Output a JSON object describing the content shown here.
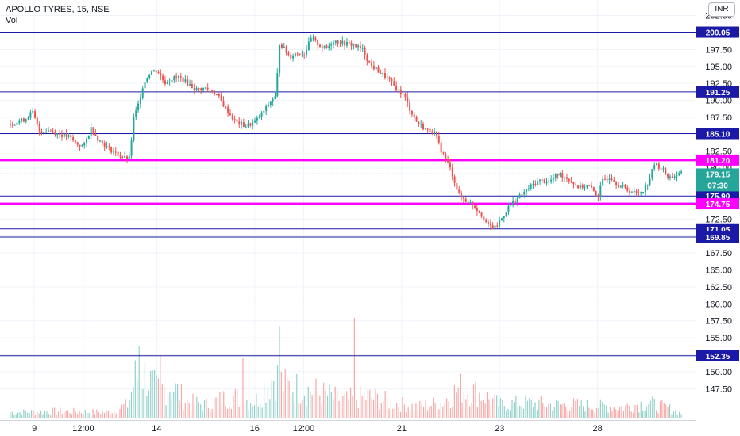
{
  "header": {
    "symbol": "APOLLO TYRES, 15, NSE",
    "indicator": "Vol",
    "currency": "INR"
  },
  "colors": {
    "up": "#26a69a",
    "down": "#ef5350",
    "hline_blue": "#1a1aa6",
    "hline_magenta": "#ff00ff",
    "last_price_badge": "#26a69a"
  },
  "chart_data": {
    "type": "candlestick",
    "y_range": [
      144.5,
      203.5
    ],
    "y_ticks": [
      "202.50",
      "200.00",
      "197.50",
      "195.00",
      "192.50",
      "190.00",
      "187.50",
      "185.00",
      "182.50",
      "180.00",
      "177.50",
      "175.00",
      "172.50",
      "170.00",
      "167.50",
      "165.00",
      "162.50",
      "160.00",
      "157.50",
      "155.00",
      "152.50",
      "150.00",
      "147.50"
    ],
    "x_labels": [
      {
        "label": "9",
        "t": 0.5
      },
      {
        "label": "12:00",
        "t": 1.5
      },
      {
        "label": "14",
        "t": 3.0
      },
      {
        "label": "16",
        "t": 5.0
      },
      {
        "label": "12:00",
        "t": 6.0
      },
      {
        "label": "21",
        "t": 8.0
      },
      {
        "label": "23",
        "t": 10.0
      },
      {
        "label": "28",
        "t": 12.0
      }
    ],
    "x_domain": [
      -0.2,
      14.0
    ],
    "price_path": [
      [
        0.0,
        186.5
      ],
      [
        0.3,
        187.2
      ],
      [
        0.45,
        188.3
      ],
      [
        0.6,
        185.4
      ],
      [
        0.8,
        185.6
      ],
      [
        1.0,
        185.0
      ],
      [
        1.2,
        184.6
      ],
      [
        1.35,
        183.6
      ],
      [
        1.5,
        183.2
      ],
      [
        1.65,
        185.9
      ],
      [
        1.8,
        184.2
      ],
      [
        1.95,
        183.2
      ],
      [
        2.15,
        182.2
      ],
      [
        2.35,
        181.4
      ],
      [
        2.45,
        181.5
      ],
      [
        2.5,
        187.0
      ],
      [
        2.6,
        189.0
      ],
      [
        2.7,
        192.0
      ],
      [
        2.85,
        194.2
      ],
      [
        3.0,
        194.4
      ],
      [
        3.15,
        192.6
      ],
      [
        3.3,
        193.2
      ],
      [
        3.45,
        193.4
      ],
      [
        3.6,
        192.6
      ],
      [
        3.8,
        191.6
      ],
      [
        4.0,
        191.8
      ],
      [
        4.2,
        191.0
      ],
      [
        4.4,
        188.8
      ],
      [
        4.6,
        186.8
      ],
      [
        4.8,
        186.2
      ],
      [
        5.0,
        186.8
      ],
      [
        5.2,
        188.6
      ],
      [
        5.35,
        190.2
      ],
      [
        5.42,
        190.5
      ],
      [
        5.5,
        198.6
      ],
      [
        5.7,
        196.4
      ],
      [
        5.85,
        197.0
      ],
      [
        6.0,
        196.8
      ],
      [
        6.15,
        199.2
      ],
      [
        6.3,
        198.2
      ],
      [
        6.45,
        197.6
      ],
      [
        6.6,
        198.8
      ],
      [
        6.8,
        198.4
      ],
      [
        7.0,
        198.2
      ],
      [
        7.2,
        197.4
      ],
      [
        7.35,
        195.2
      ],
      [
        7.5,
        194.4
      ],
      [
        7.7,
        193.2
      ],
      [
        7.9,
        191.6
      ],
      [
        8.05,
        190.6
      ],
      [
        8.15,
        188.8
      ],
      [
        8.3,
        186.8
      ],
      [
        8.5,
        185.6
      ],
      [
        8.65,
        185.4
      ],
      [
        8.8,
        182.6
      ],
      [
        8.95,
        180.5
      ],
      [
        9.05,
        178.6
      ],
      [
        9.15,
        176.2
      ],
      [
        9.3,
        175.2
      ],
      [
        9.45,
        174.6
      ],
      [
        9.6,
        173.4
      ],
      [
        9.75,
        171.6
      ],
      [
        9.9,
        171.2
      ],
      [
        10.05,
        172.8
      ],
      [
        10.2,
        174.6
      ],
      [
        10.4,
        175.8
      ],
      [
        10.6,
        177.2
      ],
      [
        10.8,
        178.2
      ],
      [
        11.0,
        178.0
      ],
      [
        11.2,
        179.2
      ],
      [
        11.4,
        178.4
      ],
      [
        11.6,
        177.2
      ],
      [
        11.8,
        177.4
      ],
      [
        12.0,
        175.9
      ],
      [
        12.1,
        178.2
      ],
      [
        12.25,
        178.8
      ],
      [
        12.4,
        177.6
      ],
      [
        12.6,
        176.8
      ],
      [
        12.8,
        176.2
      ],
      [
        12.95,
        177.0
      ],
      [
        13.05,
        178.4
      ],
      [
        13.15,
        180.6
      ],
      [
        13.3,
        180.0
      ],
      [
        13.45,
        178.6
      ],
      [
        13.6,
        179.0
      ],
      [
        13.7,
        179.15
      ]
    ],
    "volume_profile": [
      [
        0.0,
        0.05
      ],
      [
        1.0,
        0.06
      ],
      [
        2.0,
        0.05
      ],
      [
        2.4,
        0.12
      ],
      [
        2.55,
        0.38
      ],
      [
        2.75,
        0.4
      ],
      [
        3.0,
        0.25
      ],
      [
        3.3,
        0.3
      ],
      [
        3.6,
        0.15
      ],
      [
        4.0,
        0.12
      ],
      [
        4.5,
        0.2
      ],
      [
        5.0,
        0.15
      ],
      [
        5.4,
        0.4
      ],
      [
        5.6,
        0.3
      ],
      [
        6.2,
        0.25
      ],
      [
        6.8,
        0.16
      ],
      [
        7.3,
        0.2
      ],
      [
        7.8,
        0.14
      ],
      [
        8.3,
        0.1
      ],
      [
        8.8,
        0.14
      ],
      [
        9.2,
        0.28
      ],
      [
        9.6,
        0.22
      ],
      [
        10.0,
        0.12
      ],
      [
        10.5,
        0.14
      ],
      [
        11.0,
        0.12
      ],
      [
        11.5,
        0.12
      ],
      [
        12.0,
        0.11
      ],
      [
        12.5,
        0.1
      ],
      [
        13.0,
        0.14
      ],
      [
        13.5,
        0.08
      ],
      [
        13.7,
        0.04
      ]
    ],
    "volume_spikes": [
      {
        "t": 2.62,
        "h": 0.6
      },
      {
        "t": 5.48,
        "h": 0.77
      },
      {
        "t": 7.02,
        "h": 0.84
      },
      {
        "t": 3.05,
        "h": 0.52
      },
      {
        "t": 4.75,
        "h": 0.5
      }
    ],
    "horizontal_levels": [
      {
        "value": 200.05,
        "label": "200.05",
        "color": "blue"
      },
      {
        "value": 191.25,
        "label": "191.25",
        "color": "blue"
      },
      {
        "value": 185.1,
        "label": "185.10",
        "color": "blue"
      },
      {
        "value": 181.2,
        "label": "181.20",
        "color": "magenta"
      },
      {
        "value": 175.9,
        "label": "175.90",
        "color": "blue"
      },
      {
        "value": 174.75,
        "label": "174.75",
        "color": "magenta"
      },
      {
        "value": 171.05,
        "label": "171.05",
        "color": "blue"
      },
      {
        "value": 169.85,
        "label": "169.85",
        "color": "blue"
      },
      {
        "value": 152.35,
        "label": "152.35",
        "color": "blue"
      }
    ],
    "last_price": {
      "value": 179.15,
      "label": "179.15",
      "countdown": "07:30"
    }
  }
}
